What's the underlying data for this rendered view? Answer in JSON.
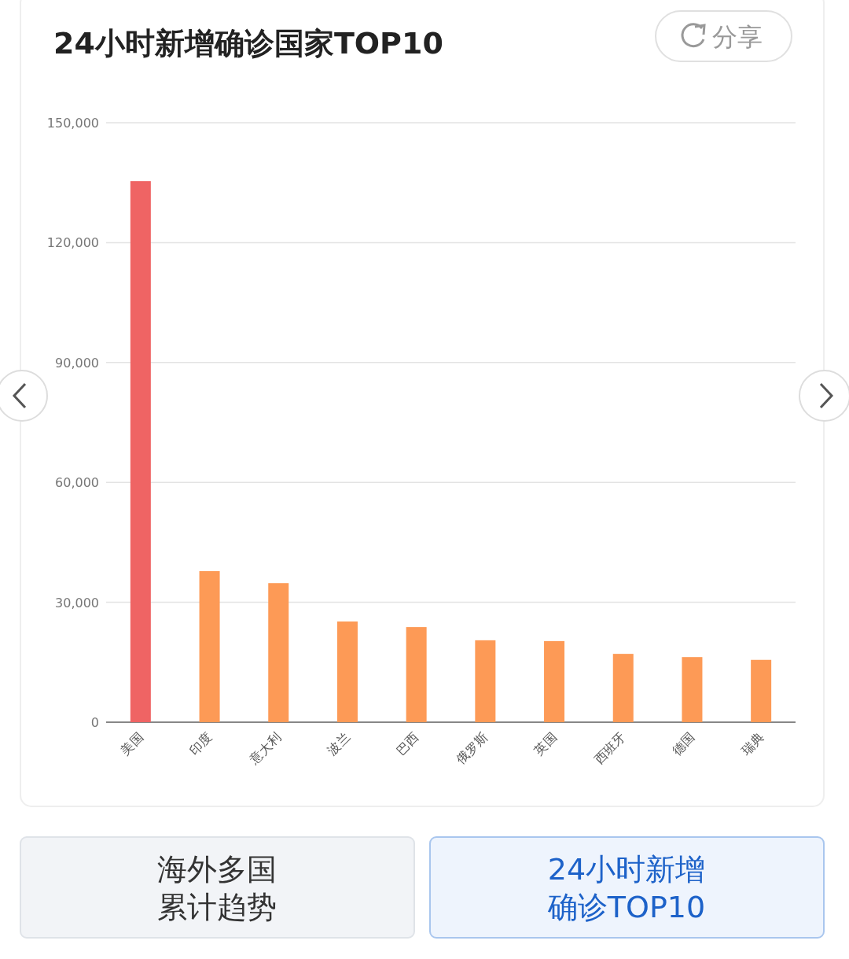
{
  "chart_data": {
    "type": "bar",
    "title": "24小时新增确诊国家TOP10",
    "categories": [
      "美国",
      "印度",
      "意大利",
      "波兰",
      "巴西",
      "俄罗斯",
      "英国",
      "西班牙",
      "德国",
      "瑞典"
    ],
    "values": [
      135400,
      37800,
      34800,
      25200,
      23800,
      20500,
      20300,
      17100,
      16300,
      15600
    ],
    "colors": [
      "#ef6464",
      "#fd9a56",
      "#fd9a56",
      "#fd9a56",
      "#fd9a56",
      "#fd9a56",
      "#fd9a56",
      "#fd9a56",
      "#fd9a56",
      "#fd9a56"
    ],
    "ylim": [
      0,
      150000
    ],
    "yticks": [
      0,
      {
        "value": 30000,
        "label": "30,000"
      },
      {
        "value": 60000,
        "label": "60,000"
      },
      {
        "value": 90000,
        "label": "90,000"
      },
      {
        "value": 120000,
        "label": "120,000"
      },
      {
        "value": 150000,
        "label": "150,000"
      }
    ],
    "grid": "y",
    "annotations": [
      "分享",
      "海外多国",
      "累计趋势",
      "24小时新增",
      "确诊TOP10"
    ]
  }
}
